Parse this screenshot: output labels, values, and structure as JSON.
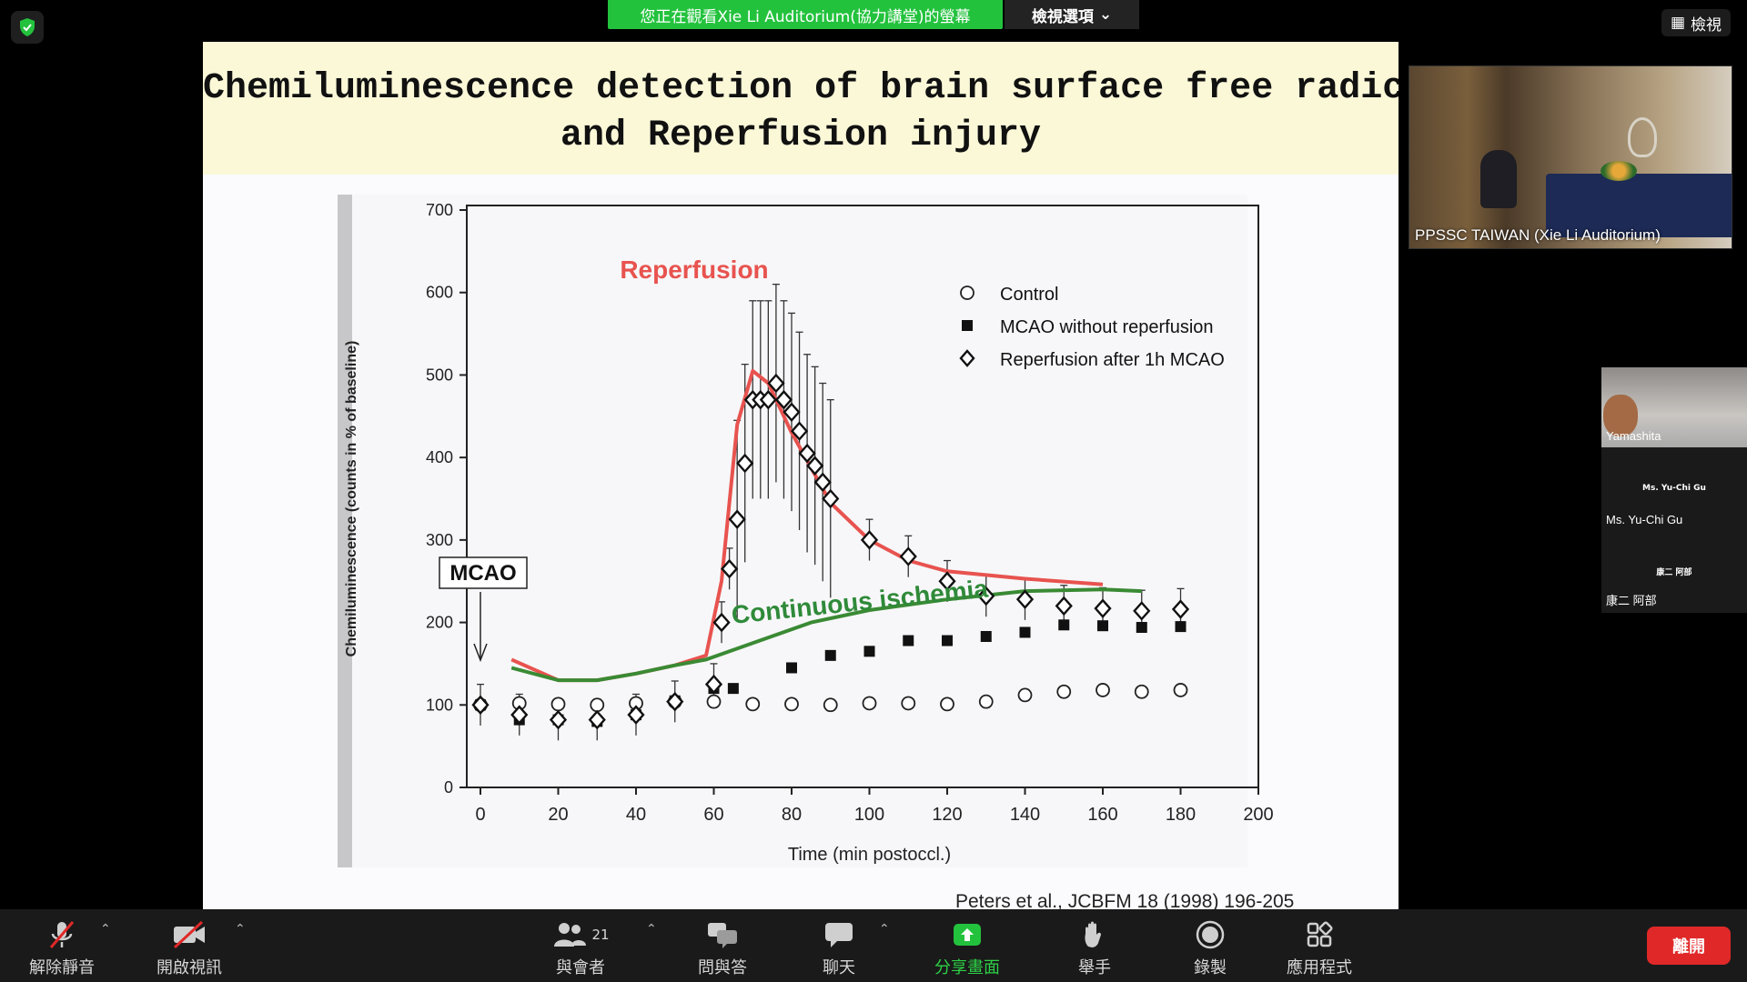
{
  "top_bar": {
    "share_banner": "您正在觀看Xie Li Auditorium(協力講堂)的螢幕",
    "view_options": "檢視選項",
    "view_button": "檢視"
  },
  "slide": {
    "title_line1": "Chemiluminescence detection of brain surface free radicals",
    "title_line2": "and Reperfusion injury",
    "citation": "Peters et al., JCBFM 18 (1998) 196-205"
  },
  "chart_data": {
    "type": "scatter",
    "xlabel": "Time (min postoccl.)",
    "ylabel": "Chemiluminescence (counts in % of baseline)",
    "xlim": [
      0,
      200
    ],
    "ylim": [
      0,
      700
    ],
    "xticks": [
      0,
      20,
      40,
      60,
      80,
      100,
      120,
      140,
      160,
      180,
      200
    ],
    "yticks": [
      0,
      100,
      200,
      300,
      400,
      500,
      600,
      700
    ],
    "legend_position": "top-right",
    "annotations": {
      "mcao": "MCAO",
      "reperfusion": "Reperfusion",
      "continuous": "Continuous ischemia"
    },
    "series": [
      {
        "name": "Control",
        "marker": "open-circle",
        "x": [
          0,
          10,
          20,
          30,
          40,
          50,
          60,
          70,
          80,
          90,
          100,
          110,
          120,
          130,
          140,
          150,
          160,
          170,
          180
        ],
        "y": [
          100,
          102,
          101,
          100,
          102,
          104,
          104,
          101,
          101,
          100,
          102,
          102,
          101,
          104,
          112,
          116,
          118,
          116,
          118
        ]
      },
      {
        "name": "MCAO without reperfusion",
        "marker": "filled-square",
        "x": [
          0,
          10,
          20,
          30,
          40,
          50,
          60,
          65,
          80,
          90,
          100,
          110,
          120,
          130,
          140,
          150,
          160,
          170,
          180
        ],
        "y": [
          100,
          82,
          82,
          80,
          88,
          105,
          120,
          120,
          145,
          160,
          165,
          178,
          178,
          183,
          188,
          197,
          196,
          194,
          195
        ]
      },
      {
        "name": "Reperfusion after 1h MCAO",
        "marker": "open-diamond",
        "x": [
          0,
          10,
          20,
          30,
          40,
          50,
          60,
          62,
          64,
          66,
          68,
          70,
          72,
          74,
          76,
          78,
          80,
          82,
          84,
          86,
          88,
          90,
          100,
          110,
          120,
          130,
          140,
          150,
          160,
          170,
          180
        ],
        "y": [
          100,
          88,
          82,
          82,
          88,
          104,
          125,
          200,
          265,
          325,
          393,
          470,
          470,
          470,
          490,
          470,
          455,
          432,
          405,
          390,
          370,
          350,
          300,
          280,
          250,
          232,
          228,
          220,
          217,
          214,
          216
        ]
      }
    ],
    "curves": [
      {
        "name": "Reperfusion",
        "color": "#e8534f",
        "x": [
          8,
          20,
          30,
          40,
          50,
          58,
          62,
          66,
          70,
          74,
          80,
          90,
          100,
          110,
          120,
          140,
          160
        ],
        "y": [
          155,
          130,
          130,
          138,
          148,
          160,
          250,
          440,
          505,
          490,
          430,
          345,
          300,
          275,
          262,
          253,
          246
        ]
      },
      {
        "name": "Continuous ischemia",
        "color": "#3a8a34",
        "x": [
          8,
          20,
          30,
          40,
          50,
          58,
          70,
          85,
          100,
          120,
          140,
          160,
          170
        ],
        "y": [
          145,
          130,
          130,
          138,
          148,
          155,
          175,
          200,
          215,
          228,
          238,
          240,
          238
        ]
      }
    ]
  },
  "videos": {
    "main_label": "PPSSC TAIWAN (Xie Li Auditorium)",
    "tile1_label": "Yamashita",
    "tile2_center": "Ms. Yu-Chi Gu",
    "tile2_label": "Ms. Yu-Chi Gu",
    "tile3_center": "康二 阿部",
    "tile3_label": "康二 阿部"
  },
  "toolbar": {
    "unmute": "解除靜音",
    "start_video": "開啟視訊",
    "participants": "與會者",
    "participants_count": "21",
    "qa": "問與答",
    "chat": "聊天",
    "share_screen": "分享畫面",
    "raise_hand": "舉手",
    "record": "錄製",
    "apps": "應用程式",
    "leave": "離開"
  }
}
